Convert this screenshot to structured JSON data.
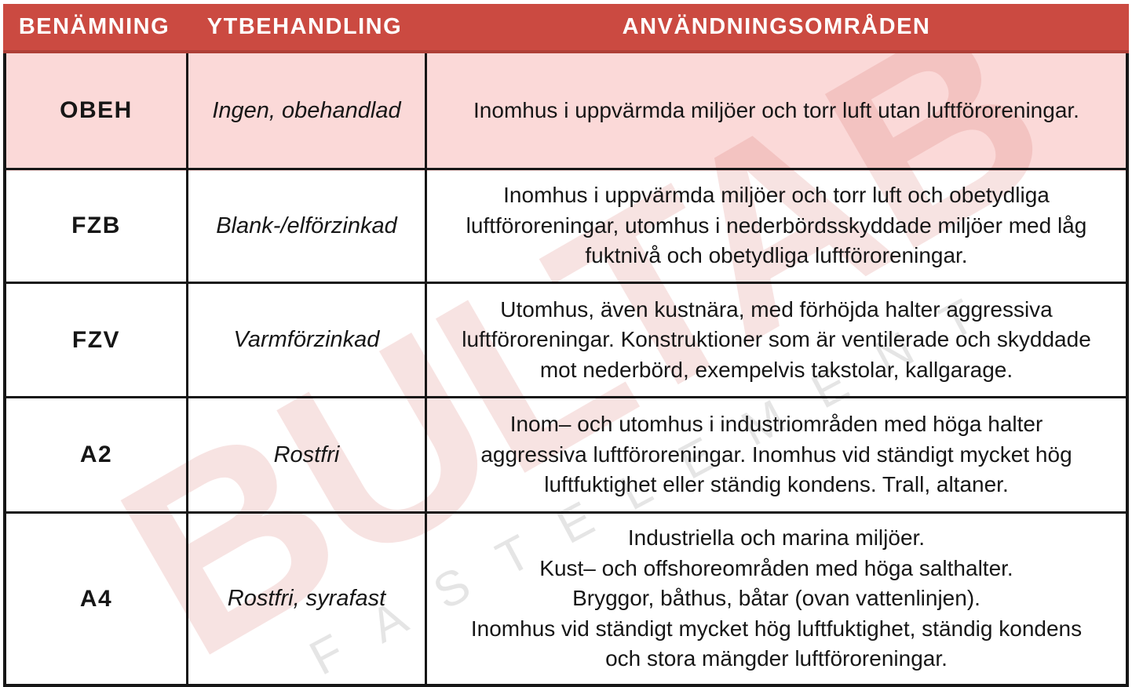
{
  "watermark": {
    "brand": "BULTAB",
    "tagline": "FÄSTELEMENT"
  },
  "colors": {
    "header_red": "#cb4a41",
    "header_red_dark": "#ae3f37",
    "row_highlight_pink": "#fbd9d8",
    "border_black": "#161616",
    "header_text": "#ffffff",
    "watermark_pink": "rgba(205,80,72,0.16)",
    "watermark_gray": "rgba(100,100,100,0.17)"
  },
  "table": {
    "columns": [
      {
        "label": "BENÄMNING"
      },
      {
        "label": "YTBEHANDLING"
      },
      {
        "label": "ANVÄNDNINGSOMRÅDEN"
      }
    ],
    "rows": [
      {
        "name": "OBEH",
        "treatment": "Ingen, obehandlad",
        "usage": "Inomhus i uppvärmda miljöer och torr luft utan luftföroreningar.",
        "highlighted": true
      },
      {
        "name": "FZB",
        "treatment": "Blank-/elförzinkad",
        "usage": "Inomhus i uppvärmda miljöer och torr luft och obetydliga luftföroreningar, utomhus i nederbördsskyddade miljöer med låg fuktnivå och obetydliga luftföroreningar.",
        "highlighted": false
      },
      {
        "name": "FZV",
        "treatment": "Varmförzinkad",
        "usage": "Utomhus, även kustnära, med förhöjda halter aggressiva luftföroreningar. Konstruktioner som är ventilerade och skyddade mot nederbörd, exempelvis takstolar, kallgarage.",
        "highlighted": false
      },
      {
        "name": "A2",
        "treatment": "Rostfri",
        "usage": "Inom– och utomhus i industriområden med höga halter aggressiva luftföroreningar. Inomhus vid ständigt mycket hög luftfuktighet eller ständig kondens. Trall, altaner.",
        "highlighted": false
      },
      {
        "name": "A4",
        "treatment": "Rostfri, syrafast",
        "usage": "Industriella och marina miljöer.\nKust– och offshoreområden med höga salthalter.\nBryggor, båthus, båtar (ovan vattenlinjen).\nInomhus vid ständigt mycket hög luftfuktighet, ständig kondens och stora mängder luftföroreningar.",
        "highlighted": false
      }
    ]
  }
}
